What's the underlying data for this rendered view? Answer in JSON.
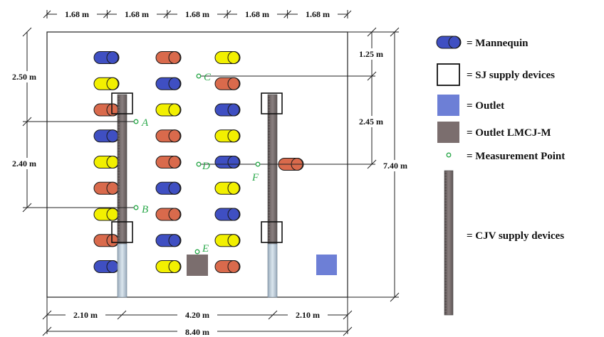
{
  "dimensions": {
    "top": [
      "1.68 m",
      "1.68 m",
      "1.68 m",
      "1.68 m",
      "1.68 m"
    ],
    "left_top": "2.50 m",
    "left_mid": "2.40 m",
    "right_top": "1.25 m",
    "right_mid": "2.45 m",
    "right_total": "7.40 m",
    "bottom_left": "2.10 m",
    "bottom_mid": "4.20 m",
    "bottom_right": "2.10 m",
    "bottom_total": "8.40 m"
  },
  "points": [
    {
      "label": "A"
    },
    {
      "label": "B"
    },
    {
      "label": "C"
    },
    {
      "label": "D"
    },
    {
      "label": "E"
    },
    {
      "label": "F"
    }
  ],
  "legend": {
    "mannequin": "= Mannequin",
    "sj": "= SJ supply devices",
    "outlet": "= Outlet",
    "outlet_lmcj": "= Outlet LMCJ-M",
    "measurement": "= Measurement Point",
    "cjv": "= CJV supply devices"
  },
  "mannequin_columns": [
    [
      "blue",
      "yellow",
      "red",
      "blue",
      "yellow",
      "red",
      "yellow",
      "red",
      "blue"
    ],
    [
      "red",
      "blue",
      "yellow",
      "red",
      "red",
      "blue",
      "red",
      "blue",
      "yellow"
    ],
    [
      "yellow",
      "red",
      "blue",
      "yellow",
      "blue",
      "yellow",
      "blue",
      "yellow",
      "red"
    ]
  ],
  "colors": {
    "blue": "#3f4fc2",
    "red": "#d96a4c",
    "yellow": "#f2f000",
    "outlet": "#6d7fd6",
    "outlet_lmcj": "#7b6e6e",
    "cjv_dark": "#7d7373",
    "cjv_light": "#c6d3de",
    "point": "#2aa84a"
  }
}
